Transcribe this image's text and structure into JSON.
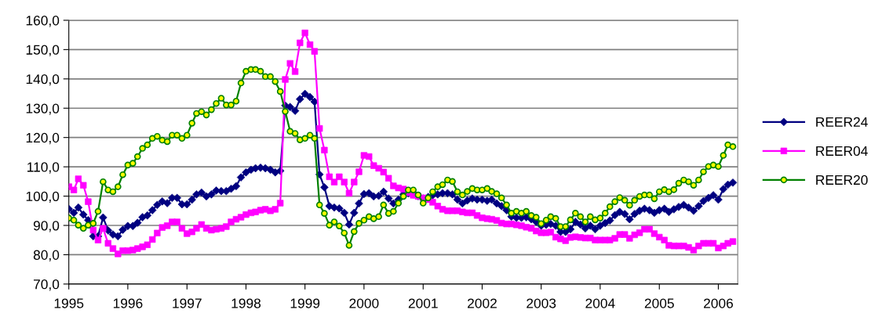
{
  "chart_data": {
    "type": "line",
    "x": [
      "1995-01",
      "1995-02",
      "1995-03",
      "1995-04",
      "1995-05",
      "1995-06",
      "1995-07",
      "1995-08",
      "1995-09",
      "1995-10",
      "1995-11",
      "1995-12",
      "1996-01",
      "1996-02",
      "1996-03",
      "1996-04",
      "1996-05",
      "1996-06",
      "1996-07",
      "1996-08",
      "1996-09",
      "1996-10",
      "1996-11",
      "1996-12",
      "1997-01",
      "1997-02",
      "1997-03",
      "1997-04",
      "1997-05",
      "1997-06",
      "1997-07",
      "1997-08",
      "1997-09",
      "1997-10",
      "1997-11",
      "1997-12",
      "1998-01",
      "1998-02",
      "1998-03",
      "1998-04",
      "1998-05",
      "1998-06",
      "1998-07",
      "1998-08",
      "1998-09",
      "1998-10",
      "1998-11",
      "1998-12",
      "1999-01",
      "1999-02",
      "1999-03",
      "1999-04",
      "1999-05",
      "1999-06",
      "1999-07",
      "1999-08",
      "1999-09",
      "1999-10",
      "1999-11",
      "1999-12",
      "2000-01",
      "2000-02",
      "2000-03",
      "2000-04",
      "2000-05",
      "2000-06",
      "2000-07",
      "2000-08",
      "2000-09",
      "2000-10",
      "2000-11",
      "2000-12",
      "2001-01",
      "2001-02",
      "2001-03",
      "2001-04",
      "2001-05",
      "2001-06",
      "2001-07",
      "2001-08",
      "2001-09",
      "2001-10",
      "2001-11",
      "2001-12",
      "2002-01",
      "2002-02",
      "2002-03",
      "2002-04",
      "2002-05",
      "2002-06",
      "2002-07",
      "2002-08",
      "2002-09",
      "2002-10",
      "2002-11",
      "2002-12",
      "2003-01",
      "2003-02",
      "2003-03",
      "2003-04",
      "2003-05",
      "2003-06",
      "2003-07",
      "2003-08",
      "2003-09",
      "2003-10",
      "2003-11",
      "2003-12",
      "2004-01",
      "2004-02",
      "2004-03",
      "2004-04",
      "2004-05",
      "2004-06",
      "2004-07",
      "2004-08",
      "2004-09",
      "2004-10",
      "2004-11",
      "2004-12",
      "2005-01",
      "2005-02",
      "2005-03",
      "2005-04",
      "2005-05",
      "2005-06",
      "2005-07",
      "2005-08",
      "2005-09",
      "2005-10",
      "2005-11",
      "2005-12",
      "2006-01",
      "2006-02",
      "2006-03",
      "2006-04"
    ],
    "series": [
      {
        "name": "REER24",
        "color": "#000080",
        "marker": "diamond",
        "values": [
          95.6,
          94.3,
          96.1,
          93.7,
          91.8,
          86.3,
          86.3,
          92.7,
          88.3,
          86.9,
          86.3,
          88.5,
          89.8,
          89.8,
          90.9,
          92.8,
          93.4,
          95.2,
          97.0,
          98.2,
          97.6,
          99.4,
          99.4,
          97.2,
          97.2,
          98.8,
          100.6,
          101.2,
          99.9,
          100.6,
          101.9,
          101.7,
          101.7,
          102.5,
          103.4,
          106.4,
          108.1,
          109.0,
          109.5,
          109.7,
          109.5,
          109.0,
          108.1,
          108.6,
          130.9,
          130.4,
          129.1,
          133.1,
          134.9,
          133.8,
          132.2,
          107.4,
          103.0,
          96.6,
          96.1,
          95.8,
          94.3,
          90.3,
          94.3,
          97.5,
          100.7,
          101.0,
          99.9,
          100.1,
          101.5,
          99.2,
          97.5,
          98.8,
          100.6,
          101.0,
          100.6,
          100.0,
          99.2,
          99.7,
          100.3,
          100.6,
          101.0,
          101.0,
          100.6,
          98.8,
          97.5,
          98.5,
          99.2,
          98.8,
          98.8,
          98.4,
          98.8,
          97.5,
          96.6,
          95.2,
          93.0,
          92.6,
          92.6,
          92.8,
          92.1,
          91.2,
          89.9,
          90.2,
          90.5,
          89.9,
          87.8,
          87.8,
          88.7,
          91.2,
          90.3,
          89.0,
          89.9,
          88.7,
          89.9,
          90.8,
          91.7,
          93.5,
          94.6,
          93.9,
          92.1,
          93.9,
          95.0,
          95.7,
          95.2,
          94.3,
          95.2,
          95.7,
          94.6,
          95.5,
          96.3,
          97.0,
          96.1,
          95.0,
          96.6,
          98.3,
          99.4,
          100.3,
          98.8,
          102.4,
          103.9,
          104.6
        ]
      },
      {
        "name": "REER04",
        "color": "#ff00ff",
        "marker": "square",
        "values": [
          103.2,
          102.1,
          105.9,
          103.7,
          98.1,
          88.4,
          85.0,
          89.0,
          83.9,
          82.1,
          80.3,
          81.4,
          81.4,
          81.6,
          82.1,
          82.7,
          83.4,
          85.2,
          87.4,
          89.3,
          89.9,
          91.2,
          91.2,
          89.0,
          87.2,
          87.8,
          89.0,
          90.3,
          89.0,
          88.4,
          88.7,
          89.0,
          89.6,
          91.2,
          92.1,
          92.8,
          93.7,
          94.3,
          94.6,
          95.2,
          95.5,
          95.0,
          95.5,
          97.6,
          139.8,
          145.3,
          142.5,
          152.3,
          155.7,
          151.7,
          149.4,
          123.1,
          115.7,
          106.6,
          104.8,
          106.6,
          104.8,
          101.0,
          104.8,
          108.3,
          113.9,
          113.5,
          110.4,
          109.5,
          108.2,
          106.1,
          103.5,
          102.8,
          102.4,
          101.2,
          100.3,
          99.9,
          99.4,
          98.8,
          97.9,
          96.6,
          95.5,
          95.0,
          95.0,
          95.0,
          94.6,
          94.3,
          94.3,
          93.4,
          92.6,
          92.3,
          92.1,
          91.7,
          90.8,
          90.5,
          90.5,
          90.2,
          89.9,
          89.4,
          89.0,
          88.1,
          87.5,
          87.5,
          87.7,
          86.0,
          85.4,
          84.8,
          85.9,
          86.1,
          85.9,
          85.7,
          85.7,
          85.0,
          85.0,
          85.0,
          85.0,
          85.6,
          86.9,
          86.9,
          85.6,
          86.8,
          87.5,
          88.7,
          88.7,
          87.2,
          86.0,
          85.0,
          83.2,
          83.0,
          83.0,
          83.0,
          82.5,
          81.6,
          83.0,
          83.9,
          83.9,
          83.9,
          82.3,
          83.0,
          83.9,
          84.5
        ]
      },
      {
        "name": "REER20",
        "color": "#008000",
        "marker": "circle",
        "values": [
          92.5,
          91.8,
          90.1,
          89.0,
          90.1,
          90.7,
          94.8,
          104.9,
          102.1,
          101.5,
          103.2,
          107.3,
          110.6,
          111.2,
          113.5,
          116.3,
          117.5,
          119.7,
          120.4,
          119.1,
          118.6,
          120.8,
          120.8,
          119.7,
          120.8,
          124.9,
          128.2,
          128.8,
          127.7,
          129.5,
          131.6,
          133.4,
          131.1,
          131.1,
          132.4,
          138.6,
          142.6,
          143.2,
          143.2,
          142.6,
          140.8,
          140.8,
          139.1,
          135.7,
          128.9,
          122.1,
          121.4,
          119.2,
          119.7,
          120.8,
          119.7,
          97.0,
          94.1,
          90.1,
          91.2,
          89.8,
          87.4,
          83.2,
          87.9,
          90.7,
          91.8,
          93.0,
          92.3,
          93.0,
          97.0,
          94.1,
          94.8,
          97.6,
          99.9,
          102.1,
          102.1,
          100.4,
          97.6,
          99.4,
          101.5,
          103.2,
          103.9,
          105.5,
          105.0,
          101.5,
          100.4,
          101.6,
          102.6,
          102.1,
          102.1,
          102.6,
          101.6,
          100.8,
          99.4,
          97.0,
          94.2,
          94.8,
          94.2,
          94.8,
          93.4,
          92.8,
          90.6,
          91.8,
          93.0,
          92.4,
          89.6,
          89.6,
          91.9,
          94.2,
          93.0,
          91.2,
          93.0,
          91.9,
          92.5,
          94.2,
          96.4,
          98.1,
          99.5,
          98.6,
          96.9,
          98.6,
          99.9,
          100.4,
          100.4,
          99.1,
          101.5,
          102.2,
          101.5,
          102.2,
          104.4,
          105.5,
          104.9,
          103.7,
          105.5,
          108.3,
          110.1,
          110.6,
          110.1,
          113.9,
          117.5,
          116.9
        ]
      }
    ],
    "xlim": [
      "1995-01",
      "2006-05"
    ],
    "xticks": [
      "1995",
      "1996",
      "1997",
      "1998",
      "1999",
      "2000",
      "2001",
      "2002",
      "2003",
      "2004",
      "2005",
      "2006"
    ],
    "ylim": [
      70,
      160
    ],
    "yticks": [
      {
        "value": 70,
        "label": "70,0"
      },
      {
        "value": 80,
        "label": "80,0"
      },
      {
        "value": 90,
        "label": "90,0"
      },
      {
        "value": 100,
        "label": "100,0"
      },
      {
        "value": 110,
        "label": "110,0"
      },
      {
        "value": 120,
        "label": "120,0"
      },
      {
        "value": 130,
        "label": "130,0"
      },
      {
        "value": 140,
        "label": "140,0"
      },
      {
        "value": 150,
        "label": "150,0"
      },
      {
        "value": 160,
        "label": "160,0"
      }
    ],
    "grid": "y",
    "legend": "right",
    "line_style": "solid"
  }
}
